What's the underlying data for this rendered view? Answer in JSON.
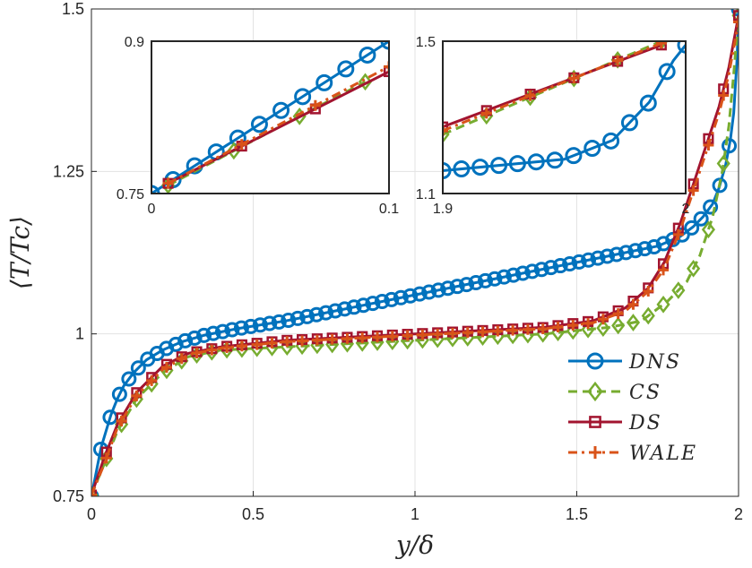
{
  "chart_data": {
    "type": "line",
    "title": "",
    "xlabel": "y/δ",
    "ylabel": "⟨T/Tc⟩",
    "xlim": [
      0,
      2
    ],
    "ylim": [
      0.75,
      1.5
    ],
    "xticks": [
      "0",
      "0.5",
      "1",
      "1.5",
      "2"
    ],
    "yticks": [
      "0.75",
      "1",
      "1.25",
      "1.5"
    ],
    "grid": true,
    "legend_position": "bottom-right",
    "series": [
      {
        "name": "DNS",
        "color": "#0072BD",
        "marker": "circle",
        "dash": "solid",
        "points": [
          [
            0,
            0.75
          ],
          [
            0.01,
            0.775
          ],
          [
            0.02,
            0.8
          ],
          [
            0.03,
            0.825
          ],
          [
            0.045,
            0.85
          ],
          [
            0.06,
            0.875
          ],
          [
            0.08,
            0.9
          ],
          [
            0.1,
            0.92
          ],
          [
            0.13,
            0.94
          ],
          [
            0.17,
            0.96
          ],
          [
            0.22,
            0.975
          ],
          [
            0.28,
            0.988
          ],
          [
            0.35,
            0.998
          ],
          [
            0.45,
            1.008
          ],
          [
            0.6,
            1.02
          ],
          [
            0.8,
            1.04
          ],
          [
            1.0,
            1.06
          ],
          [
            1.2,
            1.08
          ],
          [
            1.4,
            1.1
          ],
          [
            1.6,
            1.12
          ],
          [
            1.75,
            1.135
          ],
          [
            1.82,
            1.15
          ],
          [
            1.86,
            1.165
          ],
          [
            1.89,
            1.18
          ],
          [
            1.92,
            1.2
          ],
          [
            1.94,
            1.225
          ],
          [
            1.96,
            1.26
          ],
          [
            1.975,
            1.3
          ],
          [
            1.985,
            1.34
          ],
          [
            1.99,
            1.38
          ],
          [
            1.995,
            1.42
          ],
          [
            1.998,
            1.46
          ],
          [
            2.0,
            1.5
          ]
        ]
      },
      {
        "name": "CS",
        "color": "#77AC30",
        "marker": "diamond",
        "dash": "dashed",
        "points": [
          [
            0,
            0.752
          ],
          [
            0.04,
            0.8
          ],
          [
            0.08,
            0.85
          ],
          [
            0.14,
            0.9
          ],
          [
            0.22,
            0.94
          ],
          [
            0.3,
            0.965
          ],
          [
            0.4,
            0.975
          ],
          [
            0.6,
            0.98
          ],
          [
            0.8,
            0.985
          ],
          [
            1.0,
            0.99
          ],
          [
            1.2,
            0.995
          ],
          [
            1.4,
            1.0
          ],
          [
            1.6,
            1.01
          ],
          [
            1.7,
            1.02
          ],
          [
            1.78,
            1.05
          ],
          [
            1.84,
            1.08
          ],
          [
            1.88,
            1.12
          ],
          [
            1.92,
            1.18
          ],
          [
            1.95,
            1.25
          ],
          [
            1.97,
            1.32
          ],
          [
            1.985,
            1.4
          ],
          [
            2.0,
            1.49
          ]
        ]
      },
      {
        "name": "DS",
        "color": "#A2142F",
        "marker": "square",
        "dash": "solid",
        "points": [
          [
            0,
            0.752
          ],
          [
            0.04,
            0.81
          ],
          [
            0.08,
            0.86
          ],
          [
            0.14,
            0.91
          ],
          [
            0.22,
            0.95
          ],
          [
            0.3,
            0.97
          ],
          [
            0.4,
            0.98
          ],
          [
            0.6,
            0.99
          ],
          [
            0.8,
            0.995
          ],
          [
            1.0,
            1.0
          ],
          [
            1.2,
            1.005
          ],
          [
            1.4,
            1.01
          ],
          [
            1.55,
            1.02
          ],
          [
            1.65,
            1.04
          ],
          [
            1.72,
            1.07
          ],
          [
            1.77,
            1.11
          ],
          [
            1.82,
            1.17
          ],
          [
            1.86,
            1.23
          ],
          [
            1.9,
            1.29
          ],
          [
            1.94,
            1.35
          ],
          [
            1.97,
            1.41
          ],
          [
            2.0,
            1.49
          ]
        ]
      },
      {
        "name": "WALE",
        "color": "#D95319",
        "marker": "plus",
        "dash": "dashdot",
        "points": [
          [
            0,
            0.752
          ],
          [
            0.04,
            0.8
          ],
          [
            0.08,
            0.855
          ],
          [
            0.14,
            0.905
          ],
          [
            0.22,
            0.945
          ],
          [
            0.3,
            0.968
          ],
          [
            0.4,
            0.978
          ],
          [
            0.6,
            0.988
          ],
          [
            0.8,
            0.993
          ],
          [
            1.0,
            0.998
          ],
          [
            1.2,
            1.003
          ],
          [
            1.4,
            1.008
          ],
          [
            1.55,
            1.017
          ],
          [
            1.65,
            1.035
          ],
          [
            1.72,
            1.065
          ],
          [
            1.77,
            1.1
          ],
          [
            1.82,
            1.16
          ],
          [
            1.86,
            1.22
          ],
          [
            1.9,
            1.28
          ],
          [
            1.94,
            1.34
          ],
          [
            1.97,
            1.4
          ],
          [
            2.0,
            1.48
          ]
        ]
      }
    ],
    "insets": [
      {
        "xlim": [
          0,
          0.1
        ],
        "ylim": [
          0.75,
          0.9
        ],
        "xticks": [
          "0",
          "0.1"
        ],
        "yticks": [
          "0.75",
          "0.9"
        ],
        "series": [
          {
            "name": "DNS",
            "points": [
              [
                0,
                0.75
              ],
              [
                0.1,
                0.9
              ]
            ]
          },
          {
            "name": "CS",
            "points": [
              [
                0.007,
                0.758
              ],
              [
                0.09,
                0.86
              ]
            ]
          },
          {
            "name": "DS",
            "points": [
              [
                0.007,
                0.76
              ],
              [
                0.1,
                0.87
              ]
            ]
          },
          {
            "name": "WALE",
            "points": [
              [
                0.007,
                0.76
              ],
              [
                0.1,
                0.875
              ]
            ]
          }
        ]
      },
      {
        "xlim": [
          1.9,
          2
        ],
        "ylim": [
          1.1,
          1.5
        ],
        "xticks": [
          "1.9",
          "2"
        ],
        "yticks": [
          "1.1",
          "1.5"
        ],
        "series": [
          {
            "name": "DNS",
            "points": [
              [
                1.9,
                1.16
              ],
              [
                1.95,
                1.19
              ],
              [
                1.97,
                1.24
              ],
              [
                1.985,
                1.34
              ],
              [
                1.995,
                1.45
              ],
              [
                2.0,
                1.49
              ]
            ]
          },
          {
            "name": "CS",
            "points": [
              [
                1.9,
                1.255
              ],
              [
                1.99,
                1.5
              ]
            ]
          },
          {
            "name": "DS",
            "points": [
              [
                1.9,
                1.275
              ],
              [
                1.99,
                1.49
              ]
            ]
          },
          {
            "name": "WALE",
            "points": [
              [
                1.9,
                1.265
              ],
              [
                1.99,
                1.495
              ]
            ]
          }
        ]
      }
    ]
  }
}
